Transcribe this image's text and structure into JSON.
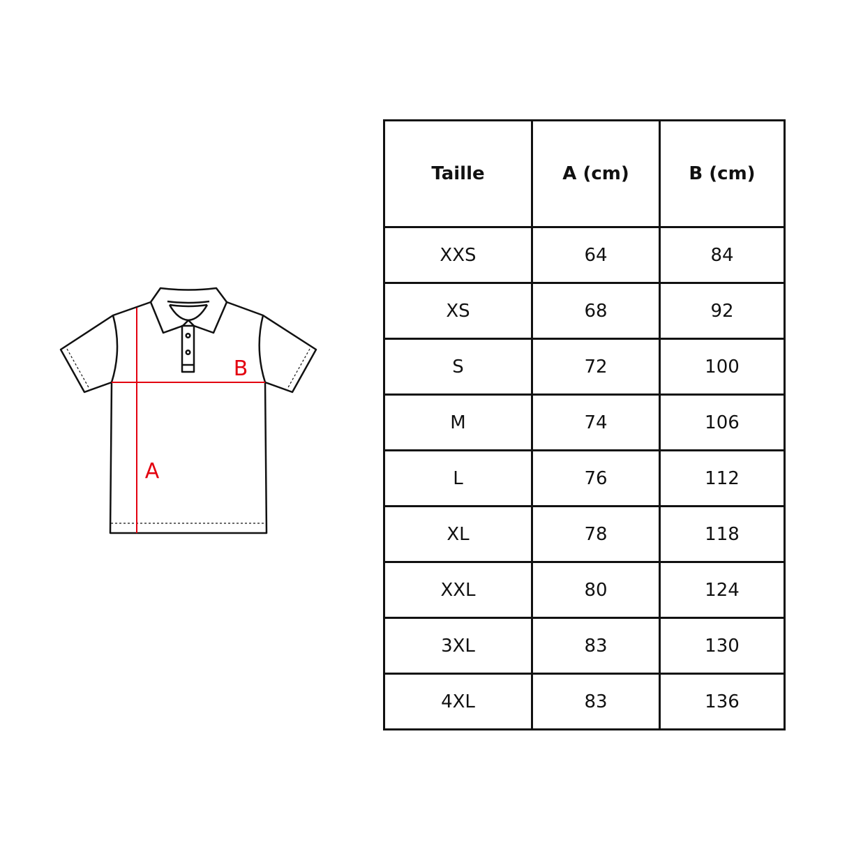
{
  "diagram": {
    "label_a": "A",
    "label_b": "B",
    "measure_color": "#e3000f"
  },
  "table": {
    "headers": [
      "Taille",
      "A (cm)",
      "B (cm)"
    ],
    "rows": [
      [
        "XXS",
        "64",
        "84"
      ],
      [
        "XS",
        "68",
        "92"
      ],
      [
        "S",
        "72",
        "100"
      ],
      [
        "M",
        "74",
        "106"
      ],
      [
        "L",
        "76",
        "112"
      ],
      [
        "XL",
        "78",
        "118"
      ],
      [
        "XXL",
        "80",
        "124"
      ],
      [
        "3XL",
        "83",
        "130"
      ],
      [
        "4XL",
        "83",
        "136"
      ]
    ]
  }
}
